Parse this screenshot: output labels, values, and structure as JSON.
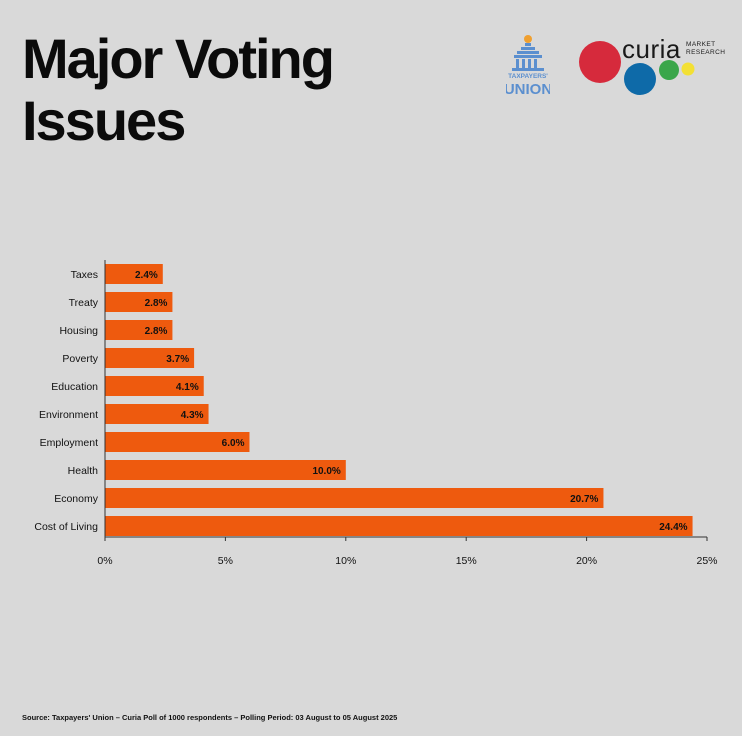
{
  "header": {
    "title_line1": "Major Voting",
    "title_line2": "Issues"
  },
  "logos": {
    "taxpayers_union": {
      "line1": "TAXPAYERS'",
      "line2": "UNION",
      "icon": "building-icon",
      "color": "#5b8fcf",
      "accent": "#f0a030"
    },
    "curia": {
      "word": "curia",
      "sub_line1": "MARKET",
      "sub_line2": "RESEARCH",
      "colors": [
        "#d62a3c",
        "#0e6aa8",
        "#3aa64a",
        "#f3e034"
      ]
    }
  },
  "chart_data": {
    "type": "bar",
    "orientation": "horizontal",
    "categories": [
      "Taxes",
      "Treaty",
      "Housing",
      "Poverty",
      "Education",
      "Environment",
      "Employment",
      "Health",
      "Economy",
      "Cost of Living"
    ],
    "values": [
      2.4,
      2.8,
      2.8,
      3.7,
      4.1,
      4.3,
      6.0,
      10.0,
      20.7,
      24.4
    ],
    "value_labels": [
      "2.4%",
      "2.8%",
      "2.8%",
      "3.7%",
      "4.1%",
      "4.3%",
      "6.0%",
      "10.0%",
      "20.7%",
      "24.4%"
    ],
    "x_ticks": [
      0,
      5,
      10,
      15,
      20,
      25
    ],
    "x_tick_labels": [
      "0%",
      "5%",
      "10%",
      "15%",
      "20%",
      "25%"
    ],
    "xlim": [
      0,
      25
    ],
    "bar_color": "#ee5a0e",
    "grid": false
  },
  "footer": {
    "source": "Source: Taxpayers' Union – Curia Poll of 1000 respondents – Polling Period: 03 August to 05 August 2025"
  }
}
